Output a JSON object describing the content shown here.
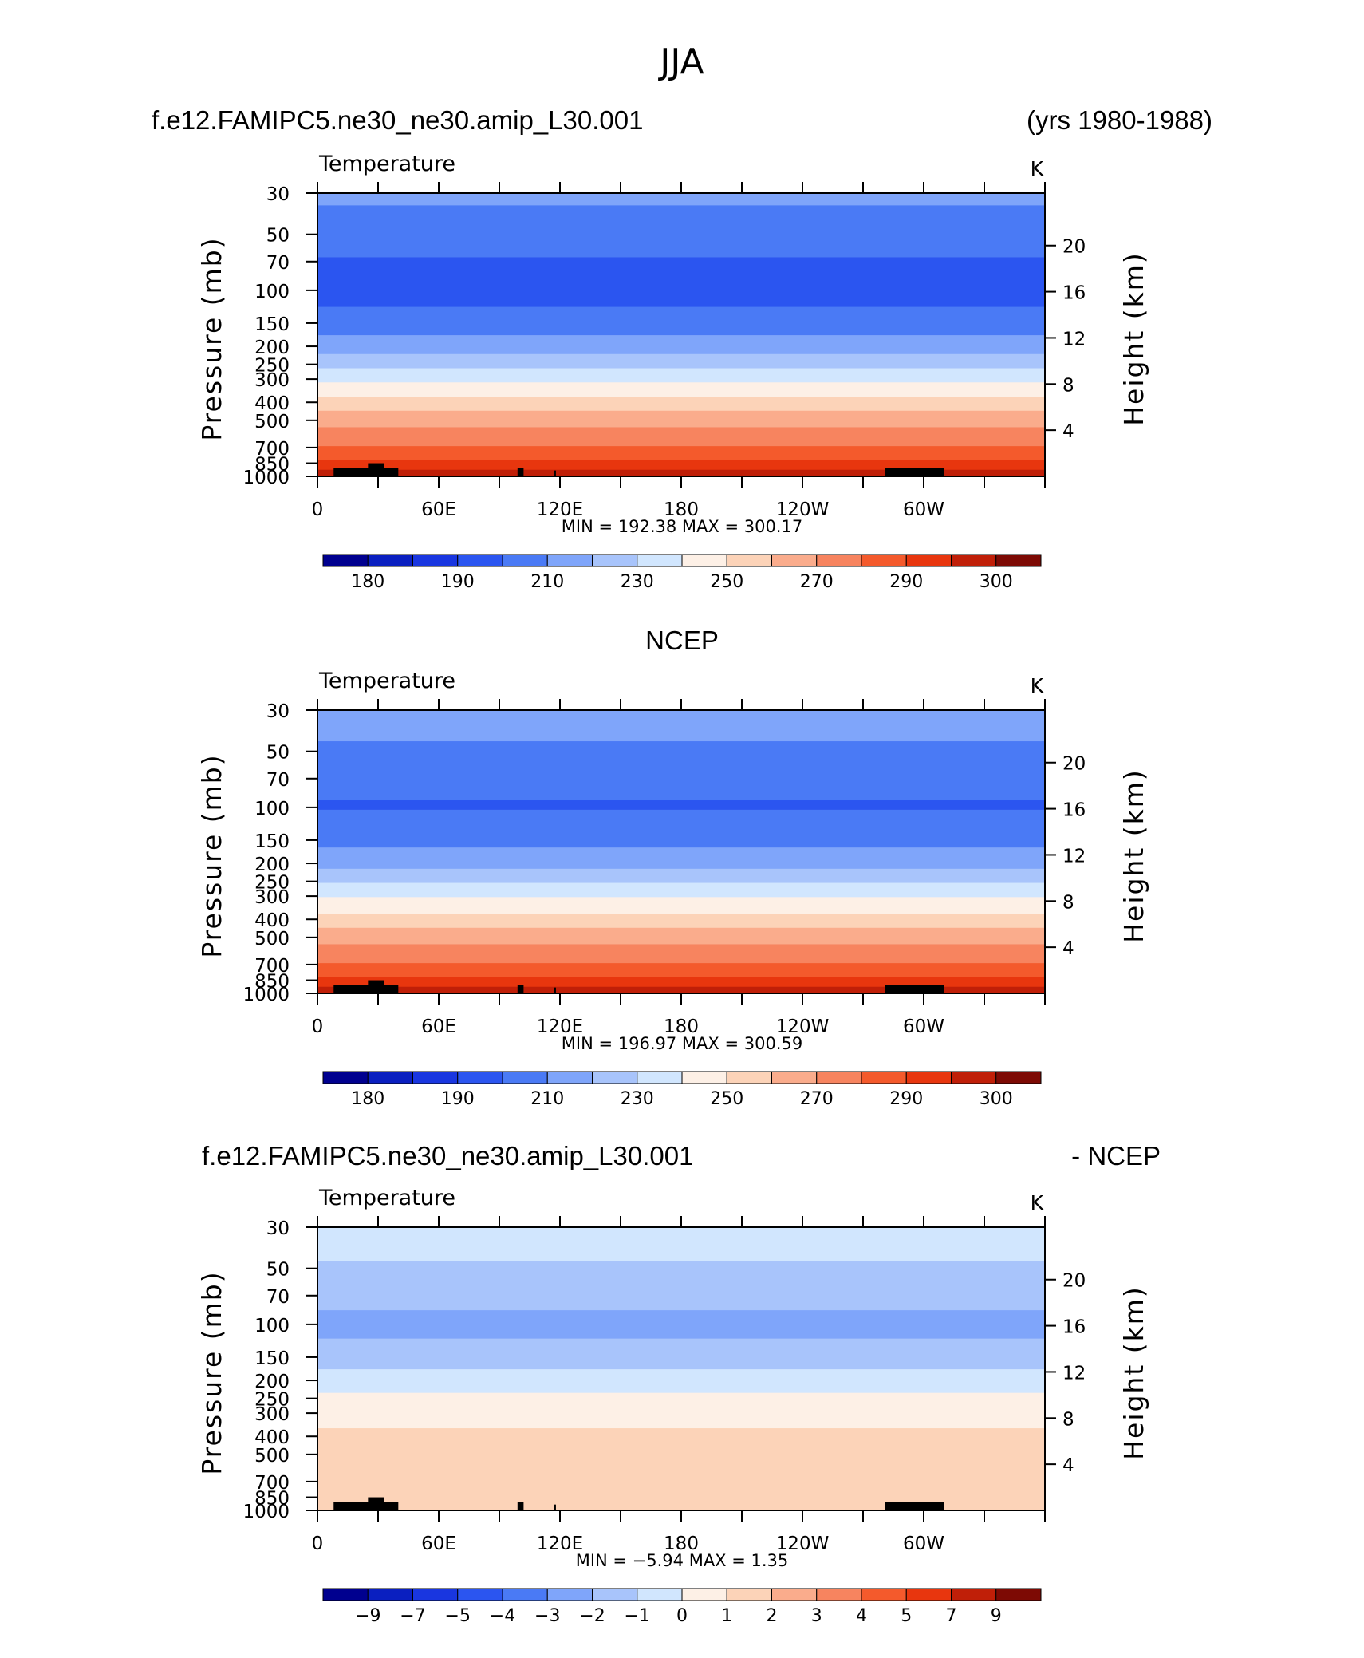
{
  "page": {
    "title": "JJA",
    "case_name": "f.e12.FAMIPC5.ne30_ne30.amip_L30.001",
    "years": "(yrs 1980-1988)",
    "obs_name": "NCEP",
    "diff_suffix": "- NCEP"
  },
  "chart_data": [
    {
      "type": "heatmap",
      "variable": "Temperature",
      "units": "K",
      "ylabel": "Pressure (mb)",
      "y2label": "Height (km)",
      "x_ticks": [
        "0",
        "60E",
        "120E",
        "180",
        "120W",
        "60W"
      ],
      "x_range": [
        0,
        360
      ],
      "y_ticks": [
        "30",
        "50",
        "70",
        "100",
        "150",
        "200",
        "250",
        "300",
        "400",
        "500",
        "700",
        "850",
        "1000"
      ],
      "y_range_mb": [
        1000,
        30
      ],
      "y_scale": "log",
      "height_ticks": [
        "20",
        "16",
        "12",
        "8",
        "4"
      ],
      "min_label": "MIN =  192.38   MAX =  300.17",
      "colorbar_labels": [
        "180",
        "190",
        "210",
        "230",
        "250",
        "270",
        "290",
        "300"
      ],
      "levels": [
        175,
        180,
        185,
        190,
        200,
        210,
        220,
        230,
        240,
        250,
        260,
        270,
        280,
        290,
        295,
        300
      ],
      "profile": [
        {
          "p": 30,
          "t": 212
        },
        {
          "p": 50,
          "t": 206
        },
        {
          "p": 70,
          "t": 199
        },
        {
          "p": 100,
          "t": 196
        },
        {
          "p": 150,
          "t": 204
        },
        {
          "p": 200,
          "t": 215
        },
        {
          "p": 250,
          "t": 226
        },
        {
          "p": 300,
          "t": 237
        },
        {
          "p": 400,
          "t": 254
        },
        {
          "p": 500,
          "t": 265
        },
        {
          "p": 700,
          "t": 281
        },
        {
          "p": 850,
          "t": 291
        },
        {
          "p": 1000,
          "t": 299
        }
      ]
    },
    {
      "type": "heatmap",
      "variable": "Temperature",
      "units": "K",
      "ylabel": "Pressure (mb)",
      "y2label": "Height (km)",
      "x_ticks": [
        "0",
        "60E",
        "120E",
        "180",
        "120W",
        "60W"
      ],
      "x_range": [
        0,
        360
      ],
      "y_ticks": [
        "30",
        "50",
        "70",
        "100",
        "150",
        "200",
        "250",
        "300",
        "400",
        "500",
        "700",
        "850",
        "1000"
      ],
      "y_range_mb": [
        1000,
        30
      ],
      "y_scale": "log",
      "height_ticks": [
        "20",
        "16",
        "12",
        "8",
        "4"
      ],
      "min_label": "MIN =  196.97   MAX =  300.59",
      "colorbar_labels": [
        "180",
        "190",
        "210",
        "230",
        "250",
        "270",
        "290",
        "300"
      ],
      "levels": [
        175,
        180,
        185,
        190,
        200,
        210,
        220,
        230,
        240,
        250,
        260,
        270,
        280,
        290,
        295,
        300
      ],
      "profile": [
        {
          "p": 30,
          "t": 214
        },
        {
          "p": 50,
          "t": 209
        },
        {
          "p": 70,
          "t": 204
        },
        {
          "p": 100,
          "t": 199
        },
        {
          "p": 150,
          "t": 207
        },
        {
          "p": 200,
          "t": 217
        },
        {
          "p": 250,
          "t": 228
        },
        {
          "p": 300,
          "t": 239
        },
        {
          "p": 400,
          "t": 254
        },
        {
          "p": 500,
          "t": 266
        },
        {
          "p": 700,
          "t": 281
        },
        {
          "p": 850,
          "t": 291
        },
        {
          "p": 1000,
          "t": 299
        }
      ]
    },
    {
      "type": "heatmap",
      "variable": "Temperature",
      "units": "K",
      "ylabel": "Pressure (mb)",
      "y2label": "Height (km)",
      "x_ticks": [
        "0",
        "60E",
        "120E",
        "180",
        "120W",
        "60W"
      ],
      "x_range": [
        0,
        360
      ],
      "y_ticks": [
        "30",
        "50",
        "70",
        "100",
        "150",
        "200",
        "250",
        "300",
        "400",
        "500",
        "700",
        "850",
        "1000"
      ],
      "y_range_mb": [
        1000,
        30
      ],
      "y_scale": "log",
      "height_ticks": [
        "20",
        "16",
        "12",
        "8",
        "4"
      ],
      "min_label": "MIN =    −5.94   MAX =     1.35",
      "colorbar_labels": [
        "−9",
        "−7",
        "−5",
        "−4",
        "−3",
        "−2",
        "−1",
        "0",
        "1",
        "2",
        "3",
        "4",
        "5",
        "7",
        "9"
      ],
      "levels": [
        -11,
        -9,
        -8,
        -7,
        -6,
        -5,
        -4,
        -3,
        -2,
        -1,
        0,
        1,
        2,
        3,
        4,
        5,
        6,
        7,
        8,
        9
      ],
      "profile": [
        {
          "p": 30,
          "t": -2.5
        },
        {
          "p": 50,
          "t": -3.1
        },
        {
          "p": 70,
          "t": -3.6
        },
        {
          "p": 100,
          "t": -4.3
        },
        {
          "p": 150,
          "t": -3.6
        },
        {
          "p": 200,
          "t": -2.6
        },
        {
          "p": 250,
          "t": -1.8
        },
        {
          "p": 300,
          "t": -1.4
        },
        {
          "p": 400,
          "t": -0.8
        },
        {
          "p": 500,
          "t": -0.6
        },
        {
          "p": 700,
          "t": -0.4
        },
        {
          "p": 850,
          "t": -0.2
        },
        {
          "p": 1000,
          "t": -0.4
        }
      ]
    }
  ],
  "colors": {
    "temperature_scale": [
      "#00008f",
      "#0a1fc0",
      "#1936e0",
      "#2b55f0",
      "#4a7af5",
      "#7fa5fa",
      "#a8c4fb",
      "#d1e6fe",
      "#fdf0e6",
      "#fcd3b8",
      "#faac8c",
      "#f7845f",
      "#f45a2c",
      "#e8360e",
      "#c01f08",
      "#7d0a04"
    ],
    "difference_scale": [
      "#00008f",
      "#0a1fc0",
      "#1936e0",
      "#2b55f0",
      "#4a7af5",
      "#7fa5fa",
      "#a8c4fb",
      "#d1e6fe",
      "#fdf0e6",
      "#fcd3b8",
      "#faac8c",
      "#f7845f",
      "#f45a2c",
      "#e8360e",
      "#c01f08",
      "#7d0a04"
    ],
    "topography": "#000000"
  }
}
